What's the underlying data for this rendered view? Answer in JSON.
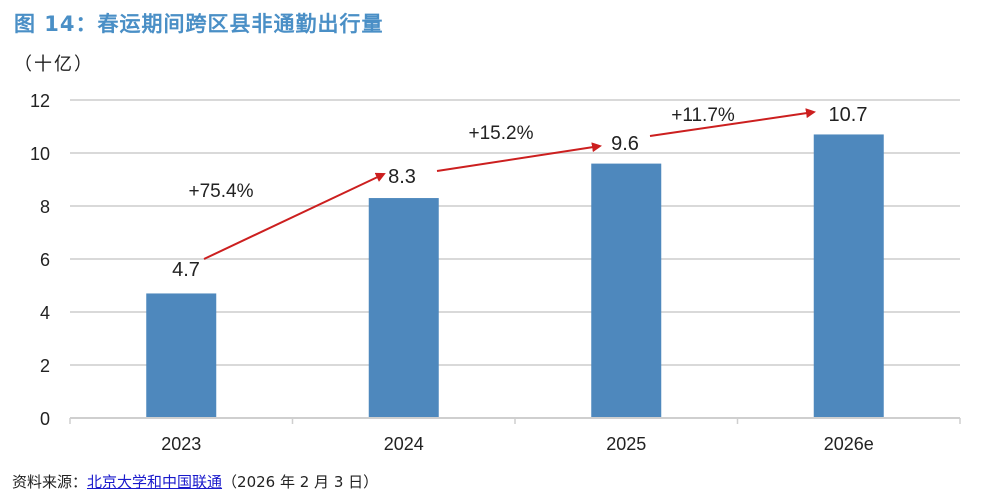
{
  "figure": {
    "title": "图 14：春运期间跨区县非通勤出行量",
    "unit": "（十亿）",
    "source_prefix": "资料来源：",
    "source_link": "北京大学和中国联通",
    "source_suffix": "（2026 年 2 月 3 日）"
  },
  "colors": {
    "bar": "#4e88bd",
    "arrow": "#cc1f1f",
    "title": "#4a8fc6",
    "grid": "#d9d9d9"
  },
  "chart_data": {
    "type": "bar",
    "title": "图 14：春运期间跨区县非通勤出行量",
    "xlabel": "",
    "ylabel": "（十亿）",
    "categories": [
      "2023",
      "2024",
      "2025",
      "2026e"
    ],
    "values": [
      4.7,
      8.3,
      9.6,
      10.7
    ],
    "value_labels": [
      "4.7",
      "8.3",
      "9.6",
      "10.7"
    ],
    "ylim": [
      0,
      12
    ],
    "yticks": [
      0,
      2,
      4,
      6,
      8,
      10,
      12
    ],
    "grid": true,
    "legend": null,
    "annotations": [
      {
        "from": "2023",
        "to": "2024",
        "label": "+75.4%"
      },
      {
        "from": "2024",
        "to": "2025",
        "label": "+15.2%"
      },
      {
        "from": "2025",
        "to": "2026e",
        "label": "+11.7%"
      }
    ]
  }
}
